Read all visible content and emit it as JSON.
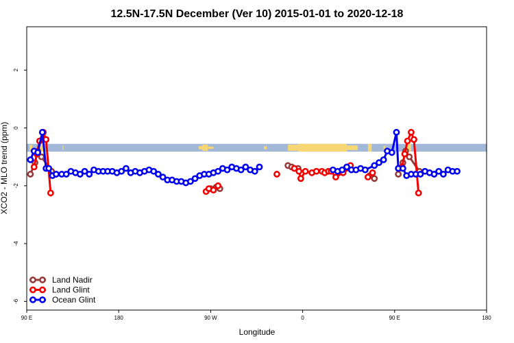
{
  "chart_data": {
    "type": "line",
    "title": "12.5N-17.5N December (Ver 10)   2015-01-01 to 2020-12-18",
    "xlabel": "Longitude",
    "ylabel": "XCO2 - MLO trend (ppm)",
    "xlim": [
      90,
      590
    ],
    "ylim": [
      -6.3,
      3.5
    ],
    "x_ticks": [
      {
        "value": 90,
        "label": "90 E"
      },
      {
        "value": 190,
        "label": "180"
      },
      {
        "value": 290,
        "label": "90 W"
      },
      {
        "value": 390,
        "label": "0"
      },
      {
        "value": 490,
        "label": "90 E"
      },
      {
        "value": 590,
        "label": "180"
      }
    ],
    "y_ticks": [
      {
        "value": 2,
        "label": "2"
      },
      {
        "value": 0,
        "label": "0"
      },
      {
        "value": -2,
        "label": "-2"
      },
      {
        "value": -4,
        "label": "-4"
      },
      {
        "value": -6,
        "label": "-6"
      }
    ],
    "land_mask_band": {
      "y_top": -0.55,
      "y_bottom": -0.82,
      "ocean_color": "#a3b8d9",
      "land_color": "#f7d774",
      "land_segments": [
        {
          "start": 93,
          "end": 96,
          "depth": 0.7
        },
        {
          "start": 102,
          "end": 108,
          "depth": 1.0
        },
        {
          "start": 111,
          "end": 113,
          "depth": 0.5
        },
        {
          "start": 129,
          "end": 130,
          "depth": 0.5
        },
        {
          "start": 277,
          "end": 281,
          "depth": 0.4
        },
        {
          "start": 281,
          "end": 287,
          "depth": 0.8
        },
        {
          "start": 287,
          "end": 293,
          "depth": 0.3
        },
        {
          "start": 348,
          "end": 351,
          "depth": 0.4
        },
        {
          "start": 374,
          "end": 385,
          "depth": 0.8
        },
        {
          "start": 385,
          "end": 438,
          "depth": 1.0
        },
        {
          "start": 438,
          "end": 450,
          "depth": 0.6
        },
        {
          "start": 461,
          "end": 465,
          "depth": 1.0
        },
        {
          "start": 478,
          "end": 480,
          "depth": 0.5
        },
        {
          "start": 502,
          "end": 508,
          "depth": 1.0
        },
        {
          "start": 511,
          "end": 513,
          "depth": 0.5
        }
      ]
    },
    "series": [
      {
        "name": "Land Nadir",
        "color": "#963a3a",
        "points": [
          {
            "x": 94,
            "y": -1.6
          },
          {
            "x": 99,
            "y": -1.2
          },
          {
            "x": 102,
            "y": -0.8
          },
          {
            "x": 106,
            "y": -1.0
          },
          {
            "x": 117,
            "y": -1.5
          },
          {
            "x": 290,
            "y": -2.1
          },
          {
            "x": 296,
            "y": -2.05
          },
          {
            "x": 300,
            "y": -2.1
          },
          {
            "x": 374,
            "y": -1.3
          },
          {
            "x": 378,
            "y": -1.35
          },
          {
            "x": 385,
            "y": -1.4
          },
          {
            "x": 463,
            "y": -1.65
          },
          {
            "x": 468,
            "y": -1.75
          },
          {
            "x": 494,
            "y": -1.6
          },
          {
            "x": 499,
            "y": -1.2
          },
          {
            "x": 502,
            "y": -0.8
          },
          {
            "x": 506,
            "y": -1.0
          },
          {
            "x": 517,
            "y": -1.5
          }
        ]
      },
      {
        "name": "Land Glint",
        "color": "#f20000",
        "points": [
          {
            "x": 98,
            "y": -1.35
          },
          {
            "x": 101,
            "y": -0.9
          },
          {
            "x": 104,
            "y": -0.45
          },
          {
            "x": 108,
            "y": -0.15
          },
          {
            "x": 111,
            "y": -0.4
          },
          {
            "x": 116,
            "y": -2.25
          },
          {
            "x": 285,
            "y": -2.2
          },
          {
            "x": 288,
            "y": -2.1
          },
          {
            "x": 293,
            "y": -2.15
          },
          {
            "x": 298,
            "y": -2.0
          },
          {
            "x": 362,
            "y": -1.6
          },
          {
            "x": 381,
            "y": -1.4
          },
          {
            "x": 386,
            "y": -1.5
          },
          {
            "x": 388,
            "y": -1.75
          },
          {
            "x": 393,
            "y": -1.5
          },
          {
            "x": 400,
            "y": -1.55
          },
          {
            "x": 405,
            "y": -1.5
          },
          {
            "x": 411,
            "y": -1.5
          },
          {
            "x": 414,
            "y": -1.55
          },
          {
            "x": 418,
            "y": -1.5
          },
          {
            "x": 421,
            "y": -1.5
          },
          {
            "x": 426,
            "y": -1.7
          },
          {
            "x": 434,
            "y": -1.55
          },
          {
            "x": 437,
            "y": -1.4
          },
          {
            "x": 442,
            "y": -1.3
          },
          {
            "x": 461,
            "y": -1.7
          },
          {
            "x": 466,
            "y": -1.55
          },
          {
            "x": 498,
            "y": -1.35
          },
          {
            "x": 501,
            "y": -0.9
          },
          {
            "x": 504,
            "y": -0.45
          },
          {
            "x": 508,
            "y": -0.15
          },
          {
            "x": 511,
            "y": -0.4
          },
          {
            "x": 516,
            "y": -2.25
          }
        ]
      },
      {
        "name": "Ocean Glint",
        "color": "#0000ee",
        "points": [
          {
            "x": 94,
            "y": -1.1
          },
          {
            "x": 98,
            "y": -0.8
          },
          {
            "x": 102,
            "y": -0.85
          },
          {
            "x": 107,
            "y": -0.15
          },
          {
            "x": 111,
            "y": -1.4
          },
          {
            "x": 114,
            "y": -1.4
          },
          {
            "x": 118,
            "y": -1.65
          },
          {
            "x": 122,
            "y": -1.6
          },
          {
            "x": 128,
            "y": -1.6
          },
          {
            "x": 133,
            "y": -1.6
          },
          {
            "x": 138,
            "y": -1.5
          },
          {
            "x": 143,
            "y": -1.55
          },
          {
            "x": 148,
            "y": -1.6
          },
          {
            "x": 153,
            "y": -1.5
          },
          {
            "x": 158,
            "y": -1.6
          },
          {
            "x": 163,
            "y": -1.45
          },
          {
            "x": 168,
            "y": -1.5
          },
          {
            "x": 173,
            "y": -1.5
          },
          {
            "x": 178,
            "y": -1.5
          },
          {
            "x": 183,
            "y": -1.5
          },
          {
            "x": 188,
            "y": -1.55
          },
          {
            "x": 193,
            "y": -1.5
          },
          {
            "x": 198,
            "y": -1.4
          },
          {
            "x": 203,
            "y": -1.55
          },
          {
            "x": 208,
            "y": -1.5
          },
          {
            "x": 213,
            "y": -1.55
          },
          {
            "x": 218,
            "y": -1.5
          },
          {
            "x": 223,
            "y": -1.45
          },
          {
            "x": 228,
            "y": -1.5
          },
          {
            "x": 233,
            "y": -1.6
          },
          {
            "x": 238,
            "y": -1.7
          },
          {
            "x": 243,
            "y": -1.8
          },
          {
            "x": 248,
            "y": -1.8
          },
          {
            "x": 253,
            "y": -1.85
          },
          {
            "x": 258,
            "y": -1.85
          },
          {
            "x": 263,
            "y": -1.9
          },
          {
            "x": 268,
            "y": -1.85
          },
          {
            "x": 273,
            "y": -1.75
          },
          {
            "x": 278,
            "y": -1.65
          },
          {
            "x": 283,
            "y": -1.6
          },
          {
            "x": 288,
            "y": -1.6
          },
          {
            "x": 293,
            "y": -1.55
          },
          {
            "x": 298,
            "y": -1.5
          },
          {
            "x": 303,
            "y": -1.4
          },
          {
            "x": 308,
            "y": -1.45
          },
          {
            "x": 313,
            "y": -1.35
          },
          {
            "x": 318,
            "y": -1.4
          },
          {
            "x": 323,
            "y": -1.45
          },
          {
            "x": 328,
            "y": -1.35
          },
          {
            "x": 333,
            "y": -1.45
          },
          {
            "x": 338,
            "y": -1.5
          },
          {
            "x": 343,
            "y": -1.35
          },
          {
            "x": 423,
            "y": -1.45
          },
          {
            "x": 428,
            "y": -1.5
          },
          {
            "x": 433,
            "y": -1.45
          },
          {
            "x": 438,
            "y": -1.35
          },
          {
            "x": 443,
            "y": -1.45
          },
          {
            "x": 448,
            "y": -1.45
          },
          {
            "x": 453,
            "y": -1.4
          },
          {
            "x": 458,
            "y": -1.45
          },
          {
            "x": 468,
            "y": -1.3
          },
          {
            "x": 473,
            "y": -1.2
          },
          {
            "x": 478,
            "y": -1.1
          },
          {
            "x": 482,
            "y": -0.8
          },
          {
            "x": 487,
            "y": -0.85
          },
          {
            "x": 492,
            "y": -0.15
          },
          {
            "x": 494,
            "y": -1.4
          },
          {
            "x": 499,
            "y": -1.4
          },
          {
            "x": 503,
            "y": -1.65
          },
          {
            "x": 508,
            "y": -1.6
          },
          {
            "x": 513,
            "y": -1.6
          },
          {
            "x": 518,
            "y": -1.6
          },
          {
            "x": 523,
            "y": -1.5
          },
          {
            "x": 528,
            "y": -1.55
          },
          {
            "x": 533,
            "y": -1.6
          },
          {
            "x": 538,
            "y": -1.5
          },
          {
            "x": 543,
            "y": -1.6
          },
          {
            "x": 548,
            "y": -1.45
          },
          {
            "x": 553,
            "y": -1.5
          },
          {
            "x": 558,
            "y": -1.5
          }
        ]
      }
    ],
    "legend": {
      "position": "bottom-left",
      "entries": [
        "Land Nadir",
        "Land Glint",
        "Ocean Glint"
      ]
    }
  }
}
